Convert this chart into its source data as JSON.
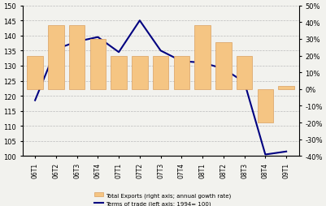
{
  "categories": [
    "06T1",
    "06T2",
    "06T3",
    "06T4",
    "07T1",
    "07T2",
    "07T3",
    "07T4",
    "08T1",
    "08T2",
    "08T3",
    "08T4",
    "09T1"
  ],
  "bar_values": [
    0.2,
    0.38,
    0.38,
    0.3,
    0.2,
    0.2,
    0.2,
    0.2,
    0.38,
    0.28,
    0.2,
    -0.2,
    0.02
  ],
  "line_values": [
    118.5,
    135.5,
    138.0,
    139.5,
    134.5,
    145.0,
    135.0,
    131.5,
    131.0,
    129.0,
    124.5,
    100.5,
    101.5
  ],
  "bar_color": "#f5c583",
  "bar_edgecolor": "#daa060",
  "line_color": "#000080",
  "left_ylim": [
    100.0,
    150.0
  ],
  "left_yticks": [
    100.0,
    105.0,
    110.0,
    115.0,
    120.0,
    125.0,
    130.0,
    135.0,
    140.0,
    145.0,
    150.0
  ],
  "right_ylim": [
    -0.4,
    0.5
  ],
  "right_yticks": [
    -0.4,
    -0.3,
    -0.2,
    -0.1,
    0.0,
    0.1,
    0.2,
    0.3,
    0.4,
    0.5
  ],
  "right_yticklabels": [
    "-40%",
    "-30%",
    "-20%",
    "-10%",
    "0%",
    "10%",
    "20%",
    "30%",
    "40%",
    "50%"
  ],
  "legend_bar": "Total Exports (right axis; annual gowth rate)",
  "legend_line": "Terms of trade (left axis; 1994= 100)",
  "grid_color": "#bbbbbb",
  "background_color": "#f2f2ee"
}
